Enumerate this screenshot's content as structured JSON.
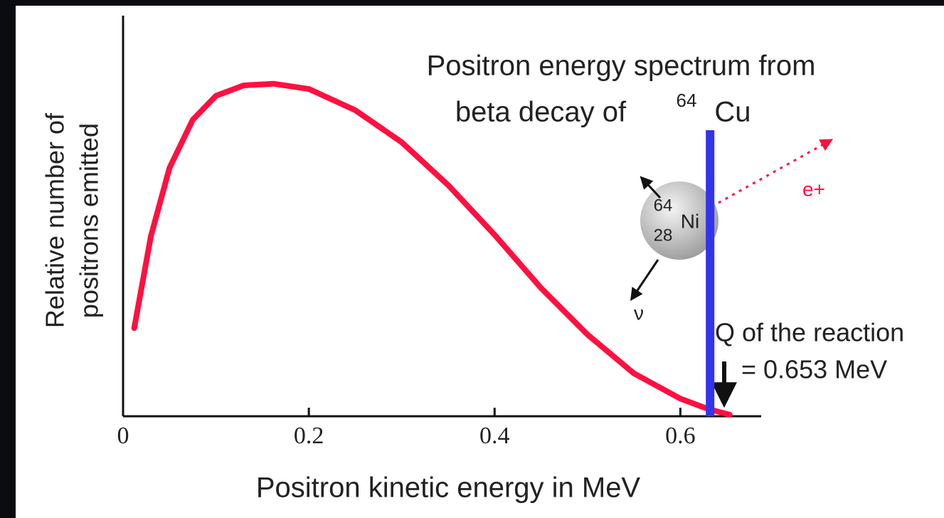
{
  "chart_data": {
    "type": "line",
    "title": [
      "Positron energy spectrum from",
      "beta decay of"
    ],
    "title_isotope": {
      "mass": "64",
      "symbol": "Cu"
    },
    "xlabel": "Positron kinetic energy in MeV",
    "ylabel": [
      "Relative number of",
      "positrons emitted"
    ],
    "x": [
      0.012,
      0.03,
      0.05,
      0.075,
      0.1,
      0.13,
      0.162,
      0.2,
      0.25,
      0.3,
      0.35,
      0.4,
      0.45,
      0.5,
      0.55,
      0.6,
      0.63,
      0.653
    ],
    "values": [
      0.22,
      0.45,
      0.62,
      0.74,
      0.8,
      0.826,
      0.83,
      0.817,
      0.764,
      0.684,
      0.577,
      0.453,
      0.32,
      0.204,
      0.107,
      0.044,
      0.018,
      0.004
    ],
    "color": "#ff1040",
    "xlim": [
      0,
      0.687
    ],
    "ylim": [
      0,
      1
    ],
    "xticks": [
      0,
      0.2,
      0.4,
      0.6
    ],
    "vline": {
      "x": 0.632,
      "ymax": 0.714,
      "color": "#3333ee"
    },
    "annotation": [
      "Q of the reaction",
      "= 0.653 MeV"
    ],
    "nucleus": {
      "mass": "64",
      "atomic_number": "28",
      "symbol": "Ni",
      "positron": "e+",
      "neutrino": "ν"
    }
  }
}
